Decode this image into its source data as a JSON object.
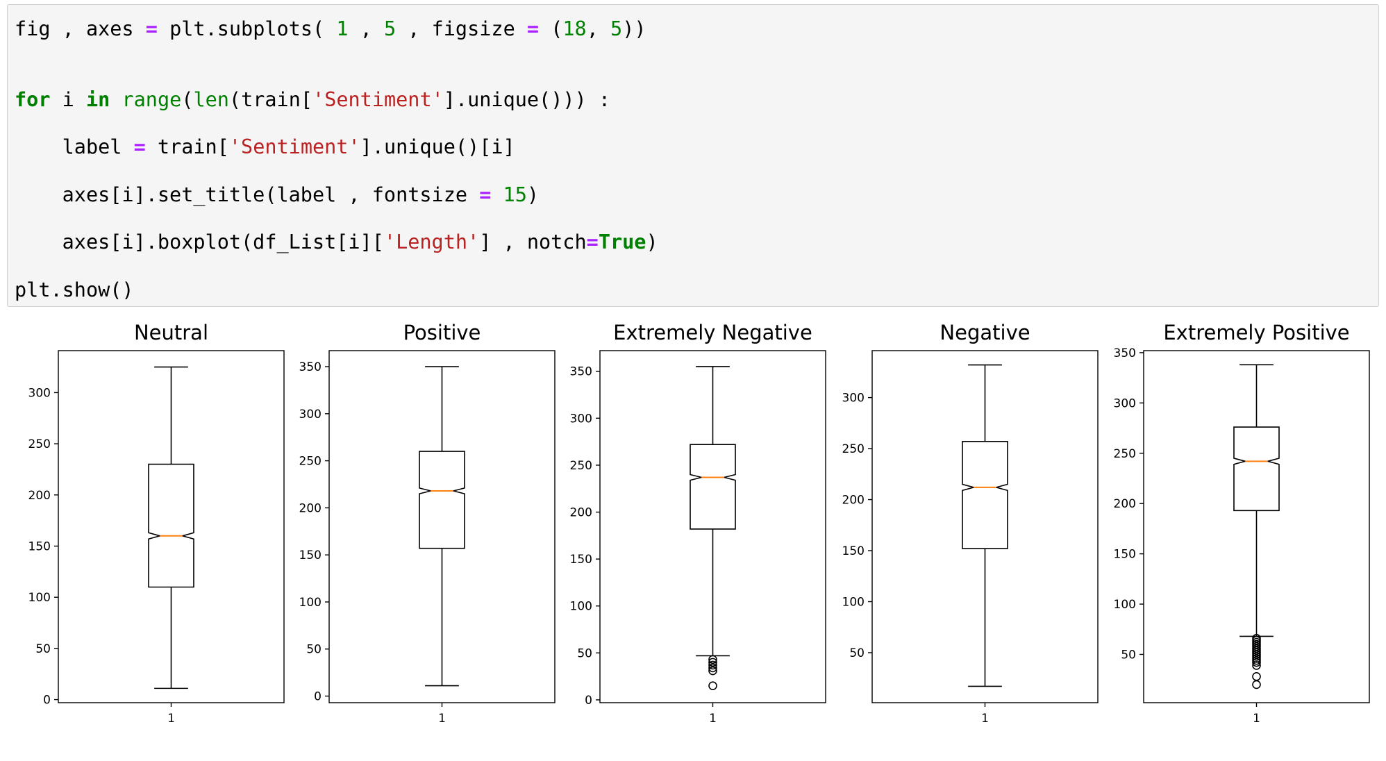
{
  "code_cell": {
    "lines": [
      [
        {
          "t": "fig , axes ",
          "k": "plain"
        },
        {
          "t": "=",
          "k": "op"
        },
        {
          "t": " plt.subplots( ",
          "k": "plain"
        },
        {
          "t": "1",
          "k": "num"
        },
        {
          "t": " , ",
          "k": "plain"
        },
        {
          "t": "5",
          "k": "num"
        },
        {
          "t": " , figsize ",
          "k": "plain"
        },
        {
          "t": "=",
          "k": "op"
        },
        {
          "t": " (",
          "k": "plain"
        },
        {
          "t": "18",
          "k": "num"
        },
        {
          "t": ", ",
          "k": "plain"
        },
        {
          "t": "5",
          "k": "num"
        },
        {
          "t": "))",
          "k": "plain"
        }
      ],
      [
        {
          "t": "for",
          "k": "kw"
        },
        {
          "t": " i ",
          "k": "plain"
        },
        {
          "t": "in",
          "k": "kw"
        },
        {
          "t": " ",
          "k": "plain"
        },
        {
          "t": "range",
          "k": "builtin"
        },
        {
          "t": "(",
          "k": "plain"
        },
        {
          "t": "len",
          "k": "builtin"
        },
        {
          "t": "(train[",
          "k": "plain"
        },
        {
          "t": "'Sentiment'",
          "k": "str"
        },
        {
          "t": "].unique())) :",
          "k": "plain"
        }
      ],
      [
        {
          "t": "    label ",
          "k": "plain"
        },
        {
          "t": "=",
          "k": "op"
        },
        {
          "t": " train[",
          "k": "plain"
        },
        {
          "t": "'Sentiment'",
          "k": "str"
        },
        {
          "t": "].unique()[i]",
          "k": "plain"
        }
      ],
      [
        {
          "t": "    axes[i].set_title(label , fontsize ",
          "k": "plain"
        },
        {
          "t": "=",
          "k": "op"
        },
        {
          "t": " ",
          "k": "plain"
        },
        {
          "t": "15",
          "k": "num"
        },
        {
          "t": ")",
          "k": "plain"
        }
      ],
      [
        {
          "t": "    axes[i].boxplot(df_List[i][",
          "k": "plain"
        },
        {
          "t": "'Length'",
          "k": "str"
        },
        {
          "t": "] , notch",
          "k": "plain"
        },
        {
          "t": "=",
          "k": "op"
        },
        {
          "t": "True",
          "k": "kw"
        },
        {
          "t": ")",
          "k": "plain"
        }
      ],
      [
        {
          "t": "plt.show()",
          "k": "plain"
        }
      ]
    ],
    "token_colors": {
      "plain": "#000000",
      "kw": "#008000",
      "builtin": "#008000",
      "op": "#aa22ff",
      "num": "#008000",
      "str": "#ba2121"
    }
  },
  "chart_data": [
    {
      "type": "boxplot",
      "title": "Neutral",
      "notch": true,
      "categories": [
        "1"
      ],
      "ylim": [
        -3,
        341
      ],
      "yticks": [
        0,
        50,
        100,
        150,
        200,
        250,
        300
      ],
      "whisker_low": 11,
      "q1": 110,
      "median": 160,
      "q3": 230,
      "whisker_high": 325,
      "notch_low": 157,
      "notch_high": 163,
      "outliers": [],
      "median_color": "#ff7f0e",
      "grid": false
    },
    {
      "type": "boxplot",
      "title": "Positive",
      "notch": true,
      "categories": [
        "1"
      ],
      "ylim": [
        -7,
        367
      ],
      "yticks": [
        0,
        50,
        100,
        150,
        200,
        250,
        300,
        350
      ],
      "whisker_low": 11,
      "q1": 157,
      "median": 218,
      "q3": 260,
      "whisker_high": 350,
      "notch_low": 215,
      "notch_high": 221,
      "outliers": [],
      "median_color": "#ff7f0e",
      "grid": false
    },
    {
      "type": "boxplot",
      "title": "Extremely Negative",
      "notch": true,
      "categories": [
        "1"
      ],
      "ylim": [
        -3,
        372
      ],
      "yticks": [
        0,
        50,
        100,
        150,
        200,
        250,
        300,
        350
      ],
      "whisker_low": 47,
      "q1": 182,
      "median": 237,
      "q3": 272,
      "whisker_high": 355,
      "notch_low": 234,
      "notch_high": 240,
      "outliers": [
        43,
        40,
        37,
        34,
        31,
        15
      ],
      "median_color": "#ff7f0e",
      "grid": false
    },
    {
      "type": "boxplot",
      "title": "Negative",
      "notch": true,
      "categories": [
        "1"
      ],
      "ylim": [
        1,
        346
      ],
      "yticks": [
        50,
        100,
        150,
        200,
        250,
        300
      ],
      "whisker_low": 17,
      "q1": 152,
      "median": 212,
      "q3": 257,
      "whisker_high": 332,
      "notch_low": 209,
      "notch_high": 215,
      "outliers": [],
      "median_color": "#ff7f0e",
      "grid": false
    },
    {
      "type": "boxplot",
      "title": "Extremely Positive",
      "notch": true,
      "categories": [
        "1"
      ],
      "ylim": [
        2,
        352
      ],
      "yticks": [
        50,
        100,
        150,
        200,
        250,
        300,
        350
      ],
      "whisker_low": 68,
      "q1": 193,
      "median": 242,
      "q3": 276,
      "whisker_high": 338,
      "notch_low": 239,
      "notch_high": 245,
      "outliers": [
        66,
        64,
        62,
        60,
        58,
        56,
        54,
        52,
        50,
        48,
        46,
        44,
        42,
        39,
        28,
        20
      ],
      "median_color": "#ff7f0e",
      "grid": false
    }
  ]
}
